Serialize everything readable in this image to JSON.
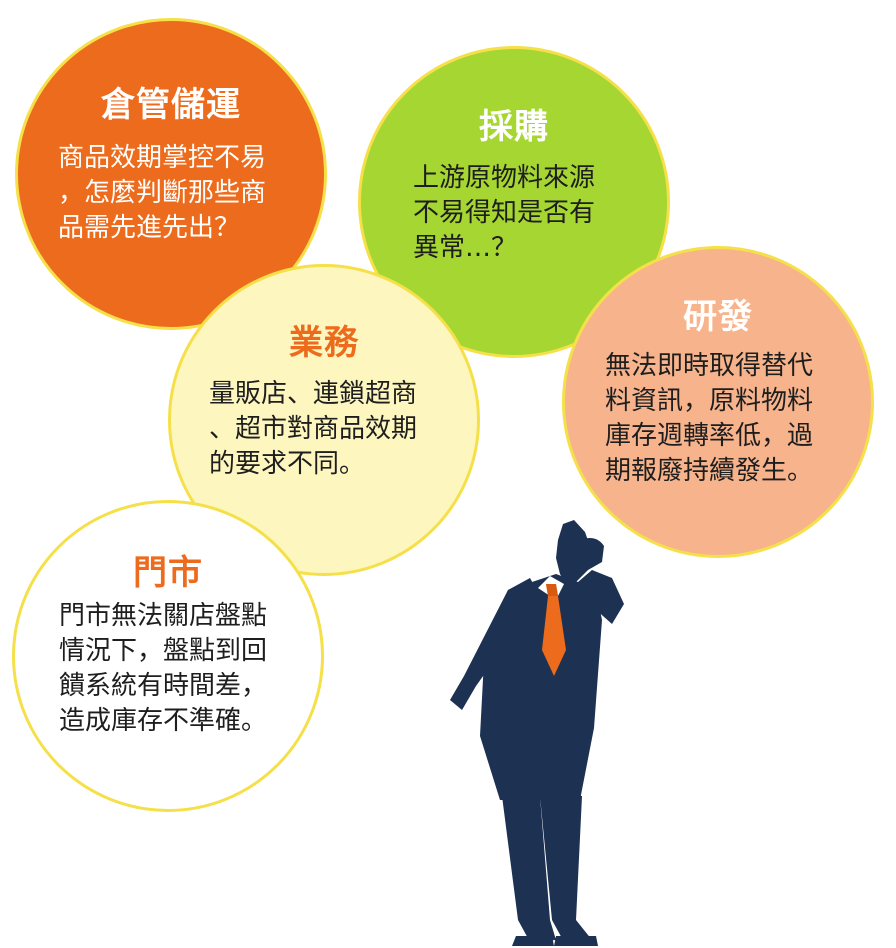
{
  "bubbles": {
    "warehouse": {
      "title": "倉管儲運",
      "lines": [
        "商品效期掌控不易",
        "，怎麼判斷那些商",
        "品需先進先出？"
      ]
    },
    "purchase": {
      "title": "採購",
      "lines": [
        "上游原物料來源",
        "不易得知是否有",
        "異常…？"
      ]
    },
    "rnd": {
      "title": "研發",
      "lines": [
        "無法即時取得替代",
        "料資訊，原料物料",
        "庫存週轉率低，過",
        "期報廢持續發生。"
      ]
    },
    "sales": {
      "title": "業務",
      "lines": [
        "量販店、連鎖超商",
        "、超市對商品效期",
        "的要求不同。"
      ]
    },
    "store": {
      "title": "門市",
      "lines": [
        "門市無法關店盤點",
        "情況下，盤點到回",
        "饋系統有時間差，",
        "造成庫存不準確。"
      ]
    }
  },
  "colors": {
    "orange": "#ed6b1c",
    "green": "#a6d631",
    "peach": "#f7b48c",
    "cream": "#fdf6bf",
    "outline": "#f5e04a",
    "suit": "#1d3152"
  },
  "figure": {
    "icon": "thinking-businessman-icon"
  }
}
